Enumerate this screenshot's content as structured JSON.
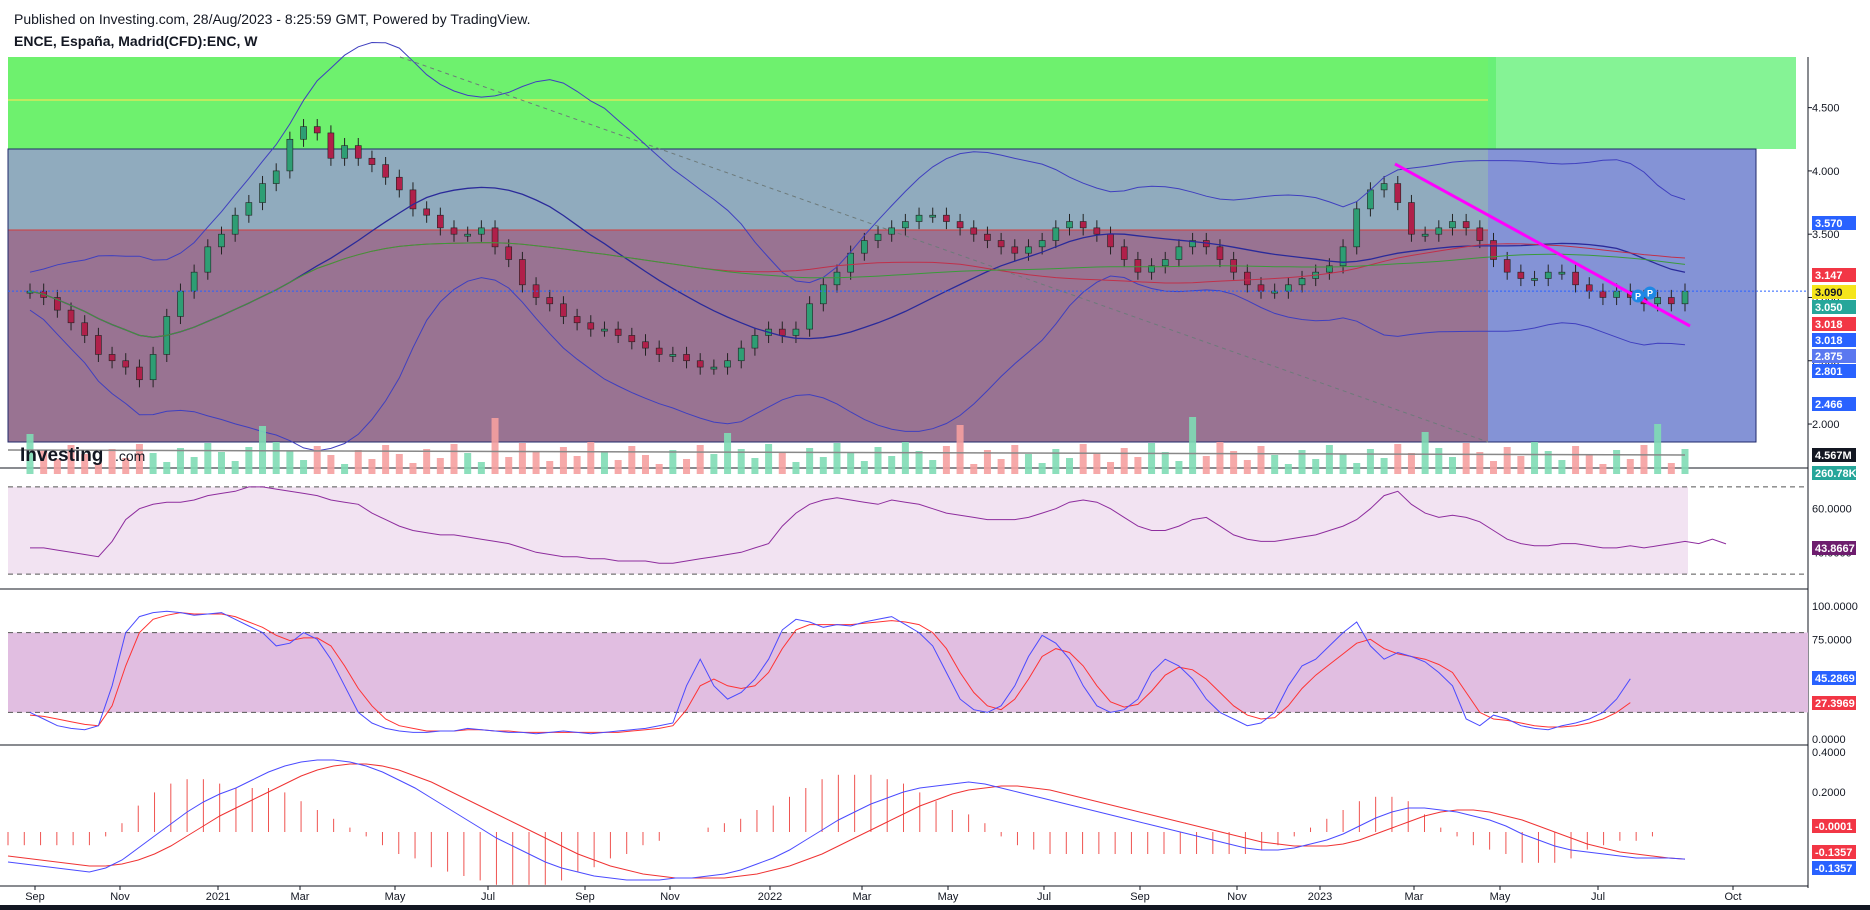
{
  "header": {
    "published": "Published on Investing.com, 28/Aug/2023 - 8:25:59 GMT, Powered by TradingView.",
    "symbol": "ENCE, España, Madrid(CFD):ENC, W"
  },
  "logo": {
    "text_main": "Investing",
    "text_suffix": ".com"
  },
  "colors": {
    "up": "#26a69a",
    "down": "#ef5350",
    "bb": "#3f3fbf",
    "trend": "#ff00ff",
    "green_zone": "#5ef05e",
    "blue_zone": "#5b6fc8",
    "red_zone": "#a0466e",
    "rsi": "#8e2d9e",
    "stoch_k": "#4b4bff",
    "stoch_d": "#ff3333"
  },
  "chart_data": [
    {
      "type": "candlestick",
      "interval": "W",
      "x_ticks": [
        "Sep",
        "Nov",
        "2021",
        "Mar",
        "May",
        "Jul",
        "Sep",
        "Nov",
        "2022",
        "Mar",
        "May",
        "Jul",
        "Sep",
        "Nov",
        "2023",
        "Mar",
        "May",
        "Jul",
        "Oct"
      ],
      "y_ticks": [
        "4.500",
        "4.000",
        "3.500",
        "3.000",
        "2.500",
        "2.000"
      ],
      "ylim": [
        1.7,
        4.9
      ],
      "series": [
        {
          "values": [
            3.05,
            3.0,
            2.9,
            2.8,
            2.7,
            2.55,
            2.5,
            2.45,
            2.35,
            2.55,
            2.85,
            3.05,
            3.2,
            3.4,
            3.5,
            3.65,
            3.75,
            3.9,
            4.0,
            4.25,
            4.35,
            4.3,
            4.1,
            4.2,
            4.1,
            4.05,
            3.95,
            3.85,
            3.7,
            3.65,
            3.55,
            3.5,
            3.5,
            3.55,
            3.4,
            3.3,
            3.1,
            3.0,
            2.95,
            2.85,
            2.8,
            2.75,
            2.75,
            2.7,
            2.65,
            2.6,
            2.55,
            2.55,
            2.5,
            2.45,
            2.45,
            2.5,
            2.6,
            2.7,
            2.75,
            2.7,
            2.75,
            2.95,
            3.1,
            3.2,
            3.35,
            3.45,
            3.5,
            3.55,
            3.6,
            3.65,
            3.65,
            3.6,
            3.55,
            3.5,
            3.45,
            3.4,
            3.35,
            3.4,
            3.45,
            3.55,
            3.6,
            3.55,
            3.5,
            3.4,
            3.3,
            3.2,
            3.25,
            3.3,
            3.4,
            3.45,
            3.4,
            3.3,
            3.2,
            3.1,
            3.05,
            3.05,
            3.1,
            3.15,
            3.2,
            3.25,
            3.4,
            3.7,
            3.85,
            3.9,
            3.75,
            3.5,
            3.5,
            3.55,
            3.6,
            3.55,
            3.45,
            3.3,
            3.2,
            3.15,
            3.15,
            3.2,
            3.2,
            3.1,
            3.05,
            3.0,
            3.05,
            3.0,
            2.95,
            3.0,
            2.95,
            3.05
          ]
        },
        {
          "name": "BB",
          "values": []
        }
      ],
      "price_tags": [
        {
          "value": "3.570",
          "color": "#2962ff"
        },
        {
          "value": "3.147",
          "color": "#f23645"
        },
        {
          "value": "3.090",
          "color": "#f5e51b"
        },
        {
          "value": "3.050",
          "color": "#26a69a"
        },
        {
          "value": "3.018",
          "color": "#f23645"
        },
        {
          "value": "3.018",
          "color": "#2962ff"
        },
        {
          "value": "2.875",
          "color": "#5b78f0"
        },
        {
          "value": "2.801",
          "color": "#2962ff"
        },
        {
          "value": "2.466",
          "color": "#2962ff"
        }
      ],
      "annotations": [
        "P",
        "P"
      ]
    },
    {
      "type": "bar",
      "volume_tags": [
        {
          "value": "4.567M",
          "color": "#131722"
        },
        {
          "value": "260.78K",
          "color": "#26a69a"
        }
      ]
    },
    {
      "type": "line",
      "y_ticks": [
        "60.0000",
        "40.0000"
      ],
      "ylim": [
        25,
        75
      ],
      "series": [
        {
          "values": [
            42,
            42,
            41,
            40,
            39,
            38,
            45,
            55,
            60,
            62,
            63,
            63,
            64,
            66,
            67,
            68,
            70,
            70,
            69,
            68,
            67,
            66,
            64,
            63,
            62,
            58,
            55,
            52,
            50,
            49,
            48,
            48,
            47,
            46,
            45,
            44,
            42,
            40,
            39,
            38,
            38,
            37,
            37,
            36,
            36,
            36,
            35,
            35,
            36,
            37,
            38,
            39,
            40,
            42,
            44,
            52,
            58,
            62,
            64,
            65,
            64,
            63,
            62,
            64,
            63,
            62,
            60,
            58,
            57,
            56,
            55,
            55,
            55,
            56,
            58,
            60,
            63,
            64,
            63,
            60,
            56,
            52,
            50,
            50,
            52,
            55,
            56,
            52,
            48,
            46,
            45,
            45,
            46,
            47,
            48,
            50,
            52,
            55,
            60,
            66,
            68,
            62,
            58,
            56,
            57,
            56,
            54,
            50,
            46,
            44,
            43,
            43,
            44,
            44,
            43,
            42,
            42,
            43,
            42,
            43,
            44,
            45,
            44,
            46,
            43.8667
          ]
        }
      ],
      "tag": {
        "value": "43.8667",
        "color": "#6e1d6e"
      }
    },
    {
      "type": "line",
      "y_ticks": [
        "100.0000",
        "75.0000",
        "45.2869",
        "27.3969",
        "0.0000"
      ],
      "ylim": [
        0,
        100
      ],
      "series": [
        {
          "name": "K",
          "values": [
            20,
            15,
            10,
            8,
            7,
            10,
            40,
            80,
            92,
            95,
            96,
            95,
            93,
            94,
            95,
            90,
            85,
            80,
            70,
            72,
            80,
            75,
            60,
            40,
            20,
            12,
            8,
            6,
            5,
            5,
            6,
            6,
            8,
            7,
            6,
            5,
            5,
            4,
            5,
            6,
            5,
            4,
            5,
            6,
            7,
            8,
            10,
            12,
            40,
            60,
            40,
            30,
            35,
            45,
            60,
            82,
            90,
            88,
            84,
            86,
            85,
            88,
            90,
            92,
            86,
            80,
            70,
            50,
            30,
            22,
            20,
            25,
            40,
            62,
            78,
            72,
            60,
            40,
            25,
            20,
            22,
            30,
            50,
            60,
            55,
            45,
            30,
            20,
            15,
            10,
            12,
            20,
            40,
            55,
            60,
            70,
            80,
            88,
            70,
            60,
            65,
            62,
            58,
            50,
            40,
            15,
            10,
            18,
            15,
            10,
            8,
            7,
            10,
            12,
            15,
            20,
            30,
            45.2869
          ]
        },
        {
          "name": "D",
          "values": [
            18,
            17,
            15,
            13,
            11,
            10,
            25,
            55,
            80,
            90,
            93,
            95,
            94,
            94,
            94,
            92,
            88,
            84,
            78,
            74,
            76,
            76,
            70,
            55,
            38,
            25,
            15,
            10,
            8,
            6,
            6,
            6,
            7,
            7,
            6,
            6,
            5,
            5,
            5,
            5,
            5,
            5,
            5,
            5,
            6,
            7,
            8,
            10,
            22,
            40,
            45,
            40,
            38,
            40,
            50,
            68,
            82,
            86,
            86,
            86,
            86,
            87,
            88,
            89,
            88,
            86,
            80,
            68,
            50,
            35,
            25,
            22,
            30,
            45,
            62,
            68,
            65,
            55,
            40,
            28,
            24,
            26,
            36,
            48,
            54,
            52,
            45,
            35,
            25,
            18,
            15,
            16,
            25,
            38,
            48,
            56,
            64,
            72,
            75,
            68,
            64,
            62,
            60,
            56,
            50,
            35,
            20,
            15,
            14,
            12,
            10,
            9,
            9,
            10,
            12,
            15,
            20,
            27.3969
          ]
        }
      ],
      "tags": [
        {
          "value": "45.2869",
          "color": "#2962ff"
        },
        {
          "value": "27.3969",
          "color": "#f23645"
        }
      ]
    },
    {
      "type": "line",
      "y_ticks": [
        "0.4000",
        "0.2000"
      ],
      "ylim": [
        -0.25,
        0.42
      ],
      "series": [
        {
          "name": "MACD",
          "values": [
            -0.15,
            -0.16,
            -0.17,
            -0.18,
            -0.19,
            -0.2,
            -0.18,
            -0.14,
            -0.08,
            -0.02,
            0.04,
            0.1,
            0.15,
            0.19,
            0.22,
            0.26,
            0.3,
            0.33,
            0.35,
            0.36,
            0.36,
            0.35,
            0.33,
            0.3,
            0.26,
            0.22,
            0.17,
            0.12,
            0.07,
            0.02,
            -0.03,
            -0.07,
            -0.11,
            -0.15,
            -0.18,
            -0.2,
            -0.22,
            -0.23,
            -0.24,
            -0.24,
            -0.24,
            -0.23,
            -0.23,
            -0.22,
            -0.21,
            -0.19,
            -0.16,
            -0.13,
            -0.09,
            -0.04,
            0.01,
            0.06,
            0.1,
            0.14,
            0.17,
            0.2,
            0.22,
            0.23,
            0.24,
            0.25,
            0.24,
            0.22,
            0.2,
            0.18,
            0.16,
            0.14,
            0.12,
            0.1,
            0.08,
            0.06,
            0.04,
            0.02,
            0.0,
            -0.02,
            -0.04,
            -0.06,
            -0.08,
            -0.09,
            -0.09,
            -0.08,
            -0.06,
            -0.04,
            -0.01,
            0.03,
            0.07,
            0.1,
            0.12,
            0.12,
            0.11,
            0.1,
            0.08,
            0.06,
            0.03,
            -0.01,
            -0.04,
            -0.07,
            -0.09,
            -0.1,
            -0.11,
            -0.12,
            -0.13,
            -0.13,
            -0.13,
            -0.1357
          ]
        },
        {
          "name": "Signal",
          "values": [
            -0.12,
            -0.13,
            -0.14,
            -0.15,
            -0.16,
            -0.17,
            -0.17,
            -0.16,
            -0.14,
            -0.11,
            -0.07,
            -0.02,
            0.03,
            0.08,
            0.12,
            0.16,
            0.2,
            0.24,
            0.28,
            0.31,
            0.33,
            0.34,
            0.34,
            0.33,
            0.31,
            0.28,
            0.25,
            0.21,
            0.17,
            0.13,
            0.09,
            0.05,
            0.01,
            -0.03,
            -0.07,
            -0.11,
            -0.14,
            -0.17,
            -0.19,
            -0.21,
            -0.22,
            -0.23,
            -0.23,
            -0.23,
            -0.23,
            -0.22,
            -0.21,
            -0.19,
            -0.17,
            -0.14,
            -0.11,
            -0.07,
            -0.03,
            0.01,
            0.05,
            0.09,
            0.13,
            0.16,
            0.19,
            0.21,
            0.22,
            0.23,
            0.23,
            0.22,
            0.21,
            0.19,
            0.17,
            0.15,
            0.13,
            0.11,
            0.09,
            0.07,
            0.05,
            0.03,
            0.01,
            -0.01,
            -0.03,
            -0.05,
            -0.06,
            -0.07,
            -0.07,
            -0.07,
            -0.06,
            -0.04,
            -0.01,
            0.02,
            0.05,
            0.08,
            0.1,
            0.11,
            0.11,
            0.1,
            0.08,
            0.06,
            0.03,
            0.0,
            -0.03,
            -0.06,
            -0.08,
            -0.1,
            -0.11,
            -0.12,
            -0.13,
            -0.1357
          ]
        }
      ],
      "tags": [
        {
          "value": "-0.0001",
          "color": "#f23645"
        },
        {
          "value": "-0.1357",
          "color": "#f23645"
        },
        {
          "value": "-0.1357",
          "color": "#2962ff"
        }
      ]
    }
  ]
}
